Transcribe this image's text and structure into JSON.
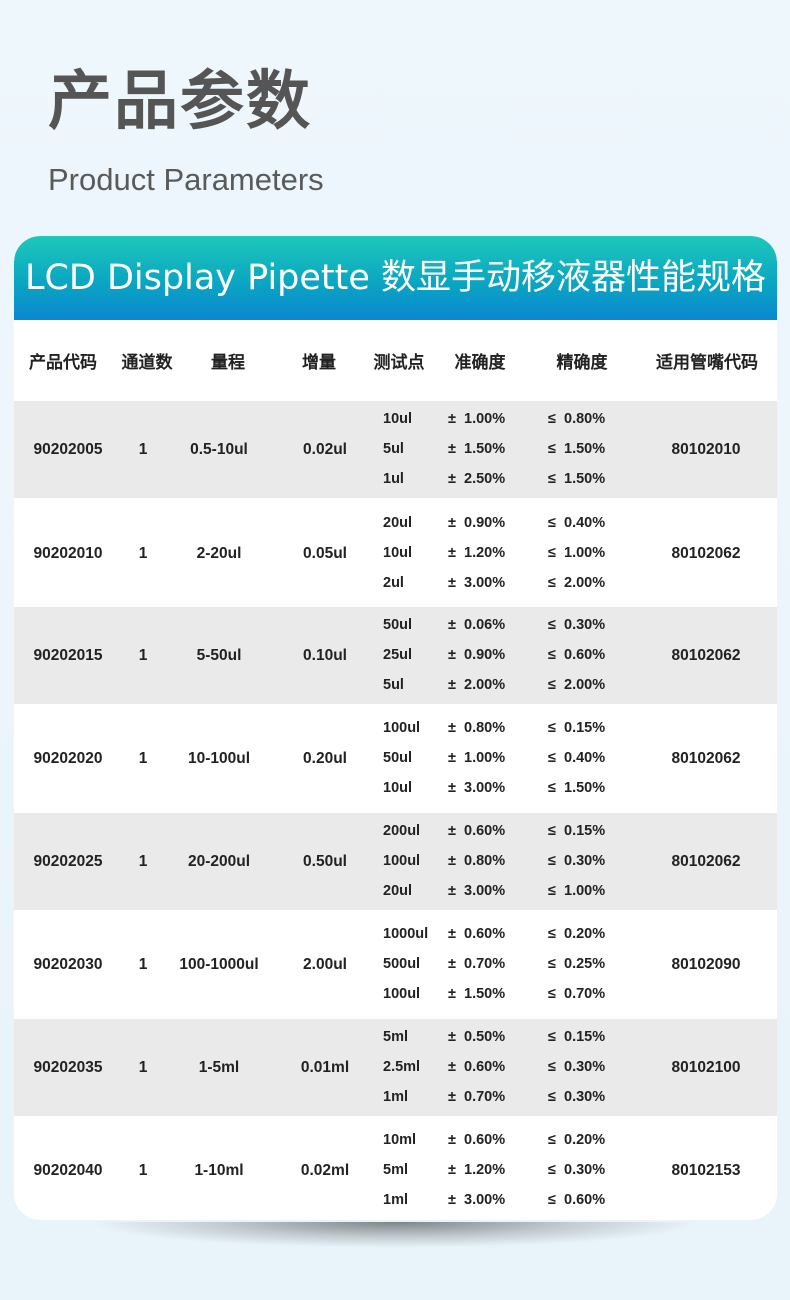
{
  "title_zh": "产品参数",
  "title_en": "Product Parameters",
  "banner": "LCD Display Pipette 数显手动移液器性能规格",
  "headers": [
    "产品代码",
    "通道数",
    "量程",
    "增量",
    "测试点",
    "准确度",
    "精确度",
    "适用管嘴代码"
  ],
  "rows": [
    {
      "code": "90202005",
      "channels": "1",
      "range": "0.5-10ul",
      "increment": "0.02ul",
      "tests": [
        {
          "point": "10ul",
          "accuracy": "±  1.00%",
          "precision": "≤  0.80%"
        },
        {
          "point": "5ul",
          "accuracy": "±  1.50%",
          "precision": "≤  1.50%"
        },
        {
          "point": "1ul",
          "accuracy": "±  2.50%",
          "precision": "≤  1.50%"
        }
      ],
      "tip": "80102010"
    },
    {
      "code": "90202010",
      "channels": "1",
      "range": "2-20ul",
      "increment": "0.05ul",
      "tests": [
        {
          "point": "20ul",
          "accuracy": "±  0.90%",
          "precision": "≤  0.40%"
        },
        {
          "point": "10ul",
          "accuracy": "±  1.20%",
          "precision": "≤  1.00%"
        },
        {
          "point": "2ul",
          "accuracy": "±  3.00%",
          "precision": "≤  2.00%"
        }
      ],
      "tip": "80102062"
    },
    {
      "code": "90202015",
      "channels": "1",
      "range": "5-50ul",
      "increment": "0.10ul",
      "tests": [
        {
          "point": "50ul",
          "accuracy": "±  0.06%",
          "precision": "≤  0.30%"
        },
        {
          "point": "25ul",
          "accuracy": "±  0.90%",
          "precision": "≤  0.60%"
        },
        {
          "point": "5ul",
          "accuracy": "±  2.00%",
          "precision": "≤  2.00%"
        }
      ],
      "tip": "80102062"
    },
    {
      "code": "90202020",
      "channels": "1",
      "range": "10-100ul",
      "increment": "0.20ul",
      "tests": [
        {
          "point": "100ul",
          "accuracy": "±  0.80%",
          "precision": "≤  0.15%"
        },
        {
          "point": "50ul",
          "accuracy": "±  1.00%",
          "precision": "≤  0.40%"
        },
        {
          "point": "10ul",
          "accuracy": "±  3.00%",
          "precision": "≤  1.50%"
        }
      ],
      "tip": "80102062"
    },
    {
      "code": "90202025",
      "channels": "1",
      "range": "20-200ul",
      "increment": "0.50ul",
      "tests": [
        {
          "point": "200ul",
          "accuracy": "±  0.60%",
          "precision": "≤  0.15%"
        },
        {
          "point": "100ul",
          "accuracy": "±  0.80%",
          "precision": "≤  0.30%"
        },
        {
          "point": "20ul",
          "accuracy": "±  3.00%",
          "precision": "≤  1.00%"
        }
      ],
      "tip": "80102062"
    },
    {
      "code": "90202030",
      "channels": "1",
      "range": "100-1000ul",
      "increment": "2.00ul",
      "tests": [
        {
          "point": "1000ul",
          "accuracy": "±  0.60%",
          "precision": "≤  0.20%"
        },
        {
          "point": "500ul",
          "accuracy": "±  0.70%",
          "precision": "≤  0.25%"
        },
        {
          "point": "100ul",
          "accuracy": "±  1.50%",
          "precision": "≤  0.70%"
        }
      ],
      "tip": "80102090"
    },
    {
      "code": "90202035",
      "channels": "1",
      "range": "1-5ml",
      "increment": "0.01ml",
      "tests": [
        {
          "point": "5ml",
          "accuracy": "±  0.50%",
          "precision": "≤  0.15%"
        },
        {
          "point": "2.5ml",
          "accuracy": "±  0.60%",
          "precision": "≤  0.30%"
        },
        {
          "point": "1ml",
          "accuracy": "±  0.70%",
          "precision": "≤  0.30%"
        }
      ],
      "tip": "80102100"
    },
    {
      "code": "90202040",
      "channels": "1",
      "range": "1-10ml",
      "increment": "0.02ml",
      "tests": [
        {
          "point": "10ml",
          "accuracy": "±  0.60%",
          "precision": "≤  0.20%"
        },
        {
          "point": "5ml",
          "accuracy": "±  1.20%",
          "precision": "≤  0.30%"
        },
        {
          "point": "1ml",
          "accuracy": "±  3.00%",
          "precision": "≤  0.60%"
        }
      ],
      "tip": "80102153"
    }
  ]
}
